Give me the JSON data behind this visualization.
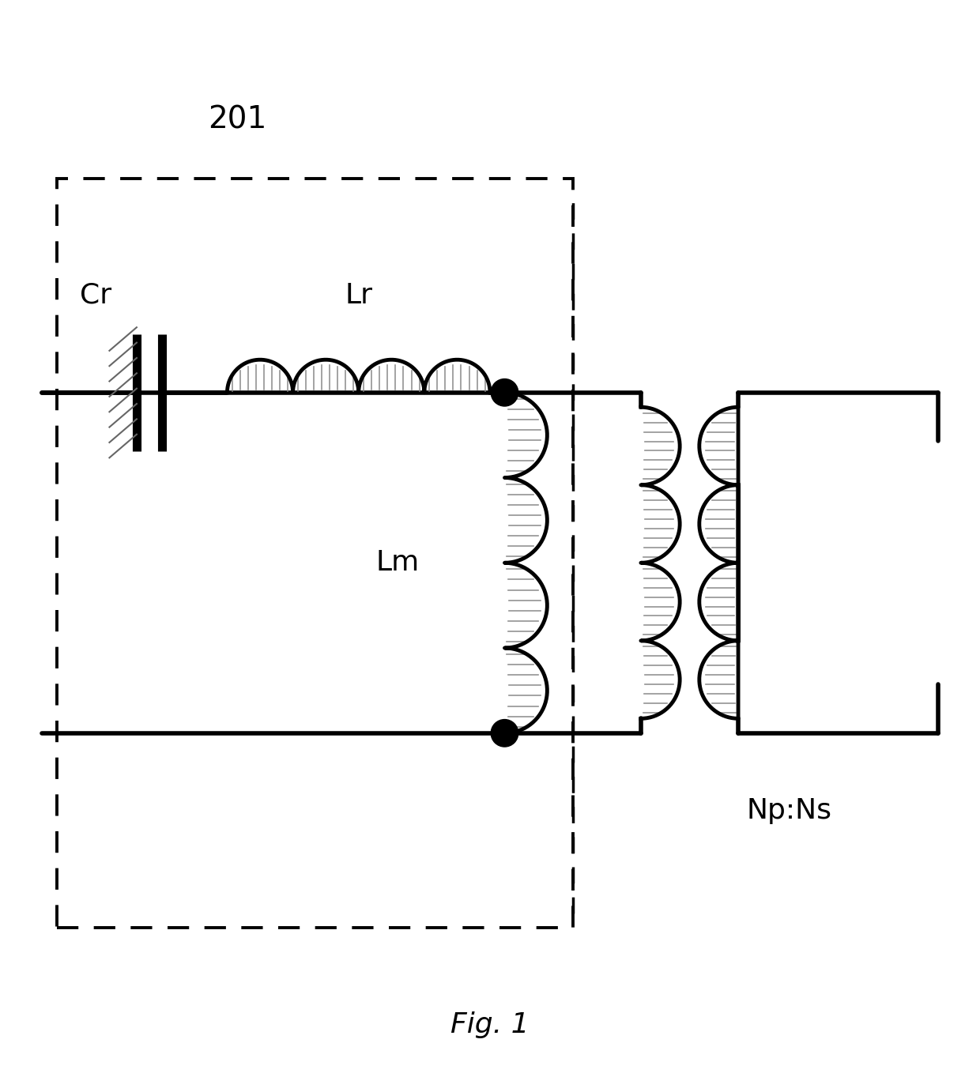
{
  "title": "201",
  "fig_label": "Fig. 1",
  "label_Cr": "Cr",
  "label_Lr": "Lr",
  "label_Lm": "Lm",
  "label_NpNs": "Np:Ns",
  "bg_color": "#ffffff",
  "wire_lw": 4.0,
  "component_lw": 3.5,
  "font_size_title": 28,
  "font_size_label": 26,
  "font_size_fig": 26
}
